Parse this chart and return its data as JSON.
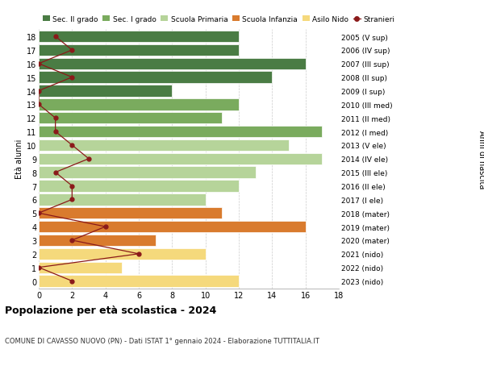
{
  "ages": [
    18,
    17,
    16,
    15,
    14,
    13,
    12,
    11,
    10,
    9,
    8,
    7,
    6,
    5,
    4,
    3,
    2,
    1,
    0
  ],
  "right_labels": [
    "2005 (V sup)",
    "2006 (IV sup)",
    "2007 (III sup)",
    "2008 (II sup)",
    "2009 (I sup)",
    "2010 (III med)",
    "2011 (II med)",
    "2012 (I med)",
    "2013 (V ele)",
    "2014 (IV ele)",
    "2015 (III ele)",
    "2016 (II ele)",
    "2017 (I ele)",
    "2018 (mater)",
    "2019 (mater)",
    "2020 (mater)",
    "2021 (nido)",
    "2022 (nido)",
    "2023 (nido)"
  ],
  "bar_values": [
    12,
    12,
    16,
    14,
    8,
    12,
    11,
    17,
    15,
    17,
    13,
    12,
    10,
    11,
    16,
    7,
    10,
    5,
    12
  ],
  "bar_colors": [
    "#4a7c44",
    "#4a7c44",
    "#4a7c44",
    "#4a7c44",
    "#4a7c44",
    "#7aab5e",
    "#7aab5e",
    "#7aab5e",
    "#b6d49a",
    "#b6d49a",
    "#b6d49a",
    "#b6d49a",
    "#b6d49a",
    "#d97b2e",
    "#d97b2e",
    "#d97b2e",
    "#f5d97c",
    "#f5d97c",
    "#f5d97c"
  ],
  "stranieri_x": [
    1,
    2,
    0,
    2,
    0,
    0,
    1,
    1,
    2,
    3,
    1,
    2,
    2,
    0,
    4,
    2,
    6,
    0,
    2
  ],
  "legend_labels": [
    "Sec. II grado",
    "Sec. I grado",
    "Scuola Primaria",
    "Scuola Infanzia",
    "Asilo Nido",
    "Stranieri"
  ],
  "legend_colors": [
    "#4a7c44",
    "#7aab5e",
    "#b6d49a",
    "#d97b2e",
    "#f5d97c",
    "#8b1a1a"
  ],
  "ylabel_left": "Età alunni",
  "ylabel_right": "Anni di nascita",
  "title": "Popolazione per età scolastica - 2024",
  "subtitle": "COMUNE DI CAVASSO NUOVO (PN) - Dati ISTAT 1° gennaio 2024 - Elaborazione TUTTITALIA.IT",
  "xlim": [
    0,
    18
  ],
  "background_color": "#ffffff",
  "grid_color": "#cccccc"
}
